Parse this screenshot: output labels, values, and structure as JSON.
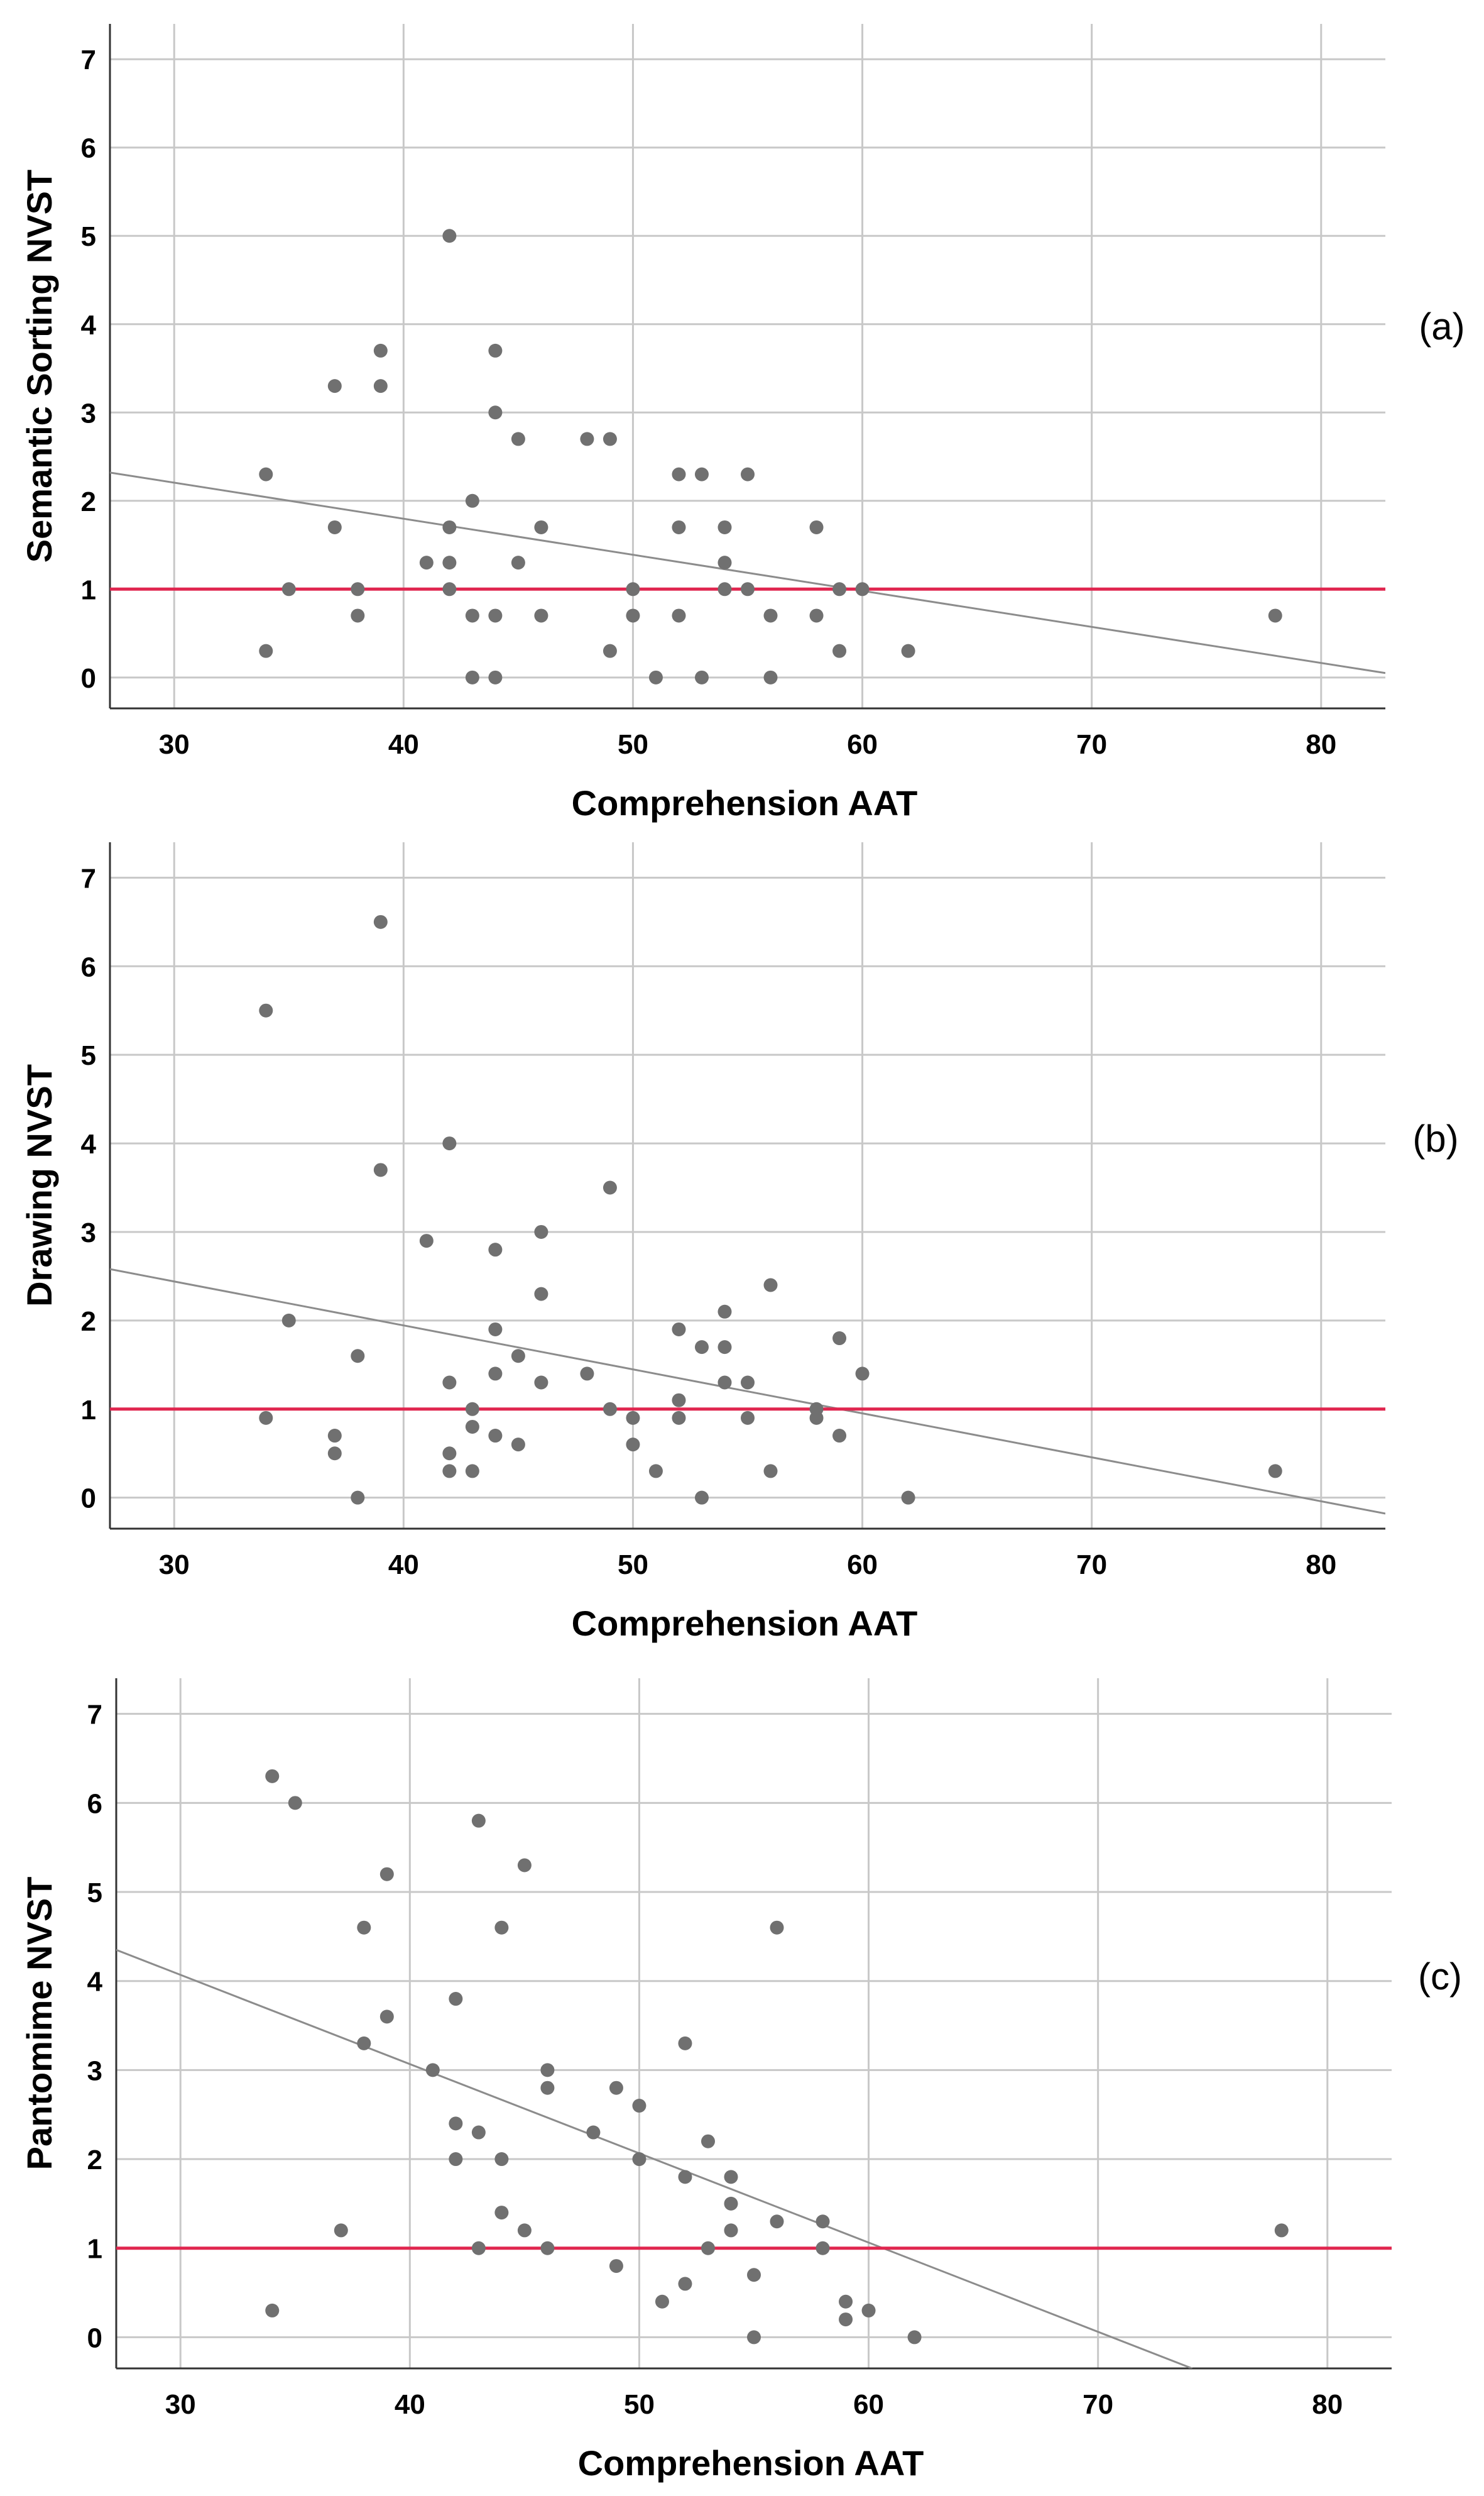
{
  "figure": {
    "colors": {
      "point": "#707070",
      "grid": "#c8c8c8",
      "axis": "#333333",
      "fit_line": "#8c8c8c",
      "reference_line": "#e0264f"
    }
  },
  "chart_data": [
    {
      "type": "scatter",
      "panel_label": "(a)",
      "xlabel": "Comprehension AAT",
      "ylabel": "Semantic Sorting NVST",
      "xlim": [
        27.2,
        82.8
      ],
      "ylim": [
        -0.35,
        7.4
      ],
      "xticks": [
        30,
        40,
        50,
        60,
        70,
        80
      ],
      "yticks": [
        0,
        1,
        2,
        3,
        4,
        5,
        6,
        7
      ],
      "grid": true,
      "reference_line": {
        "y": 1
      },
      "fit_line": {
        "from": [
          27.2,
          2.32
        ],
        "to": [
          82.8,
          0.05
        ]
      },
      "points": [
        [
          34,
          2.3
        ],
        [
          34,
          0.3
        ],
        [
          35,
          1.0
        ],
        [
          37,
          3.3
        ],
        [
          37,
          1.7
        ],
        [
          38,
          1.0
        ],
        [
          38,
          0.7
        ],
        [
          39,
          3.7
        ],
        [
          39,
          3.3
        ],
        [
          41,
          1.3
        ],
        [
          42,
          5.0
        ],
        [
          42,
          1.7
        ],
        [
          42,
          1.3
        ],
        [
          42,
          1.0
        ],
        [
          43,
          2.0
        ],
        [
          43,
          0.7
        ],
        [
          43,
          0.0
        ],
        [
          44,
          3.7
        ],
        [
          44,
          3.0
        ],
        [
          44,
          0.7
        ],
        [
          44,
          0.0
        ],
        [
          45,
          2.7
        ],
        [
          45,
          1.3
        ],
        [
          46,
          1.7
        ],
        [
          46,
          0.7
        ],
        [
          48,
          2.7
        ],
        [
          49,
          2.7
        ],
        [
          49,
          0.3
        ],
        [
          50,
          1.0
        ],
        [
          50,
          0.7
        ],
        [
          51,
          0.0
        ],
        [
          52,
          2.3
        ],
        [
          52,
          1.7
        ],
        [
          52,
          0.7
        ],
        [
          53,
          2.3
        ],
        [
          53,
          0.0
        ],
        [
          54,
          1.7
        ],
        [
          54,
          1.3
        ],
        [
          54,
          1.0
        ],
        [
          55,
          2.3
        ],
        [
          55,
          1.0
        ],
        [
          56,
          0.7
        ],
        [
          56,
          0.0
        ],
        [
          58,
          1.7
        ],
        [
          58,
          0.7
        ],
        [
          59,
          1.0
        ],
        [
          59,
          0.3
        ],
        [
          60,
          1.0
        ],
        [
          62,
          0.3
        ],
        [
          78,
          0.7
        ]
      ]
    },
    {
      "type": "scatter",
      "panel_label": "(b)",
      "xlabel": "Comprehension AAT",
      "ylabel": "Drawing NVST",
      "xlim": [
        27.2,
        82.8
      ],
      "ylim": [
        -0.35,
        7.4
      ],
      "xticks": [
        30,
        40,
        50,
        60,
        70,
        80
      ],
      "yticks": [
        0,
        1,
        2,
        3,
        4,
        5,
        6,
        7
      ],
      "grid": true,
      "reference_line": {
        "y": 1
      },
      "fit_line": {
        "from": [
          27.2,
          2.58
        ],
        "to": [
          82.8,
          -0.18
        ]
      },
      "points": [
        [
          34,
          5.5
        ],
        [
          34,
          0.9
        ],
        [
          35,
          2.0
        ],
        [
          37,
          0.7
        ],
        [
          37,
          0.5
        ],
        [
          38,
          1.6
        ],
        [
          38,
          0.0
        ],
        [
          39,
          6.5
        ],
        [
          39,
          3.7
        ],
        [
          41,
          2.9
        ],
        [
          42,
          4.0
        ],
        [
          42,
          1.3
        ],
        [
          42,
          0.5
        ],
        [
          42,
          0.3
        ],
        [
          43,
          1.0
        ],
        [
          43,
          0.8
        ],
        [
          43,
          0.3
        ],
        [
          44,
          2.8
        ],
        [
          44,
          1.9
        ],
        [
          44,
          1.4
        ],
        [
          44,
          0.7
        ],
        [
          45,
          1.6
        ],
        [
          45,
          0.6
        ],
        [
          46,
          3.0
        ],
        [
          46,
          2.3
        ],
        [
          46,
          1.3
        ],
        [
          48,
          1.4
        ],
        [
          49,
          3.5
        ],
        [
          49,
          1.0
        ],
        [
          50,
          0.9
        ],
        [
          50,
          0.6
        ],
        [
          51,
          0.3
        ],
        [
          52,
          1.9
        ],
        [
          52,
          1.1
        ],
        [
          52,
          0.9
        ],
        [
          53,
          1.7
        ],
        [
          53,
          0.0
        ],
        [
          54,
          2.1
        ],
        [
          54,
          1.7
        ],
        [
          54,
          1.3
        ],
        [
          55,
          1.3
        ],
        [
          55,
          0.9
        ],
        [
          56,
          2.4
        ],
        [
          56,
          0.3
        ],
        [
          58,
          1.0
        ],
        [
          58,
          0.9
        ],
        [
          59,
          1.8
        ],
        [
          59,
          0.7
        ],
        [
          60,
          1.4
        ],
        [
          62,
          0.0
        ],
        [
          78,
          0.3
        ]
      ]
    },
    {
      "type": "scatter",
      "panel_label": "(c)",
      "xlabel": "Comprehension AAT",
      "ylabel": "Pantomime NVST",
      "xlim": [
        27.2,
        82.8
      ],
      "ylim": [
        -0.35,
        7.4
      ],
      "xticks": [
        30,
        40,
        50,
        60,
        70,
        80
      ],
      "yticks": [
        0,
        1,
        2,
        3,
        4,
        5,
        6,
        7
      ],
      "grid": true,
      "reference_line": {
        "y": 1
      },
      "fit_line": {
        "from": [
          27.2,
          4.35
        ],
        "to": [
          74.1,
          -0.35
        ]
      },
      "points": [
        [
          34,
          6.3
        ],
        [
          34,
          0.3
        ],
        [
          35,
          6.0
        ],
        [
          37,
          1.2
        ],
        [
          38,
          4.6
        ],
        [
          38,
          3.3
        ],
        [
          39,
          5.2
        ],
        [
          39,
          3.6
        ],
        [
          41,
          3.0
        ],
        [
          42,
          3.8
        ],
        [
          42,
          2.4
        ],
        [
          42,
          2.0
        ],
        [
          43,
          5.8
        ],
        [
          43,
          2.3
        ],
        [
          43,
          1.0
        ],
        [
          44,
          4.6
        ],
        [
          44,
          2.0
        ],
        [
          44,
          1.4
        ],
        [
          45,
          5.3
        ],
        [
          45,
          1.2
        ],
        [
          46,
          3.0
        ],
        [
          46,
          2.8
        ],
        [
          46,
          1.0
        ],
        [
          48,
          2.3
        ],
        [
          49,
          2.8
        ],
        [
          49,
          0.8
        ],
        [
          50,
          2.6
        ],
        [
          50,
          2.0
        ],
        [
          51,
          0.4
        ],
        [
          52,
          3.3
        ],
        [
          52,
          1.8
        ],
        [
          52,
          0.6
        ],
        [
          53,
          2.2
        ],
        [
          53,
          1.0
        ],
        [
          54,
          1.8
        ],
        [
          54,
          1.5
        ],
        [
          54,
          1.2
        ],
        [
          55,
          0.7
        ],
        [
          55,
          0.0
        ],
        [
          56,
          4.6
        ],
        [
          56,
          1.3
        ],
        [
          58,
          1.3
        ],
        [
          58,
          1.0
        ],
        [
          59,
          0.4
        ],
        [
          59,
          0.2
        ],
        [
          60,
          0.3
        ],
        [
          62,
          0.0
        ],
        [
          78,
          1.2
        ]
      ]
    }
  ]
}
